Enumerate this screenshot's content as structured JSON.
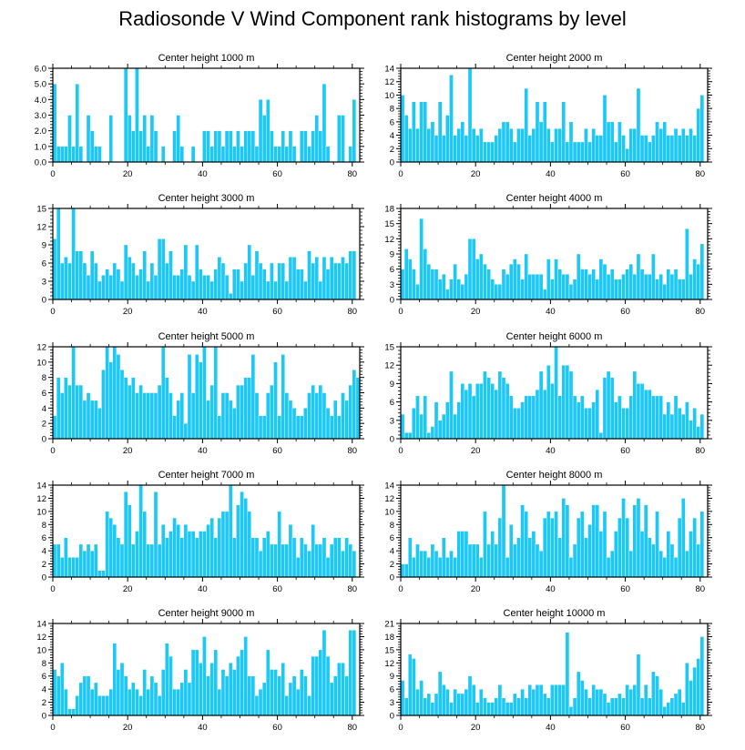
{
  "title": "Radiosonde V Wind Component rank histograms by level",
  "colors": {
    "bar": "#1ec8f5",
    "bar_edge": "#ffffff",
    "axis": "#000000"
  },
  "chart_data": [
    {
      "type": "bar",
      "title": "Center height 1000 m",
      "xlim": [
        0,
        82
      ],
      "ylim": [
        0,
        6
      ],
      "xticks": [
        0,
        20,
        40,
        60,
        80
      ],
      "yticks": [
        0,
        1,
        2,
        3,
        4,
        5,
        6
      ],
      "ytick_labels": [
        "0.0",
        "1.0",
        "2.0",
        "3.0",
        "4.0",
        "5.0",
        "6.0"
      ],
      "values": [
        5,
        1,
        1,
        1,
        3,
        1,
        5,
        1,
        0,
        3,
        2,
        1,
        1,
        0,
        0,
        3,
        0,
        0,
        0,
        6,
        3,
        2,
        6,
        2,
        3,
        1,
        3,
        2,
        0,
        1,
        0,
        0,
        2,
        3,
        1,
        0,
        0,
        1,
        0,
        0,
        2,
        2,
        1,
        2,
        2,
        1,
        2,
        2,
        1,
        2,
        1,
        2,
        2,
        2,
        1,
        4,
        3,
        4,
        2,
        1,
        1,
        2,
        1,
        2,
        1,
        0,
        2,
        2,
        1,
        2,
        3,
        2,
        5,
        1,
        0,
        0,
        3,
        3,
        0,
        1,
        4,
        0
      ]
    },
    {
      "type": "bar",
      "title": "Center height 2000 m",
      "xlim": [
        0,
        82
      ],
      "ylim": [
        0,
        14
      ],
      "xticks": [
        0,
        20,
        40,
        60,
        80
      ],
      "yticks": [
        0,
        2,
        4,
        6,
        8,
        10,
        12,
        14
      ],
      "ytick_labels": [
        "0",
        "2",
        "4",
        "6",
        "8",
        "10",
        "12",
        "14"
      ],
      "values": [
        10,
        7,
        5,
        9,
        5,
        9,
        9,
        5,
        6,
        4,
        9,
        4,
        7,
        13,
        4,
        5,
        6,
        4,
        14,
        5,
        4,
        5,
        3,
        3,
        3,
        4,
        5,
        6,
        6,
        5,
        3,
        5,
        5,
        11,
        4,
        5,
        9,
        6,
        9,
        5,
        3,
        5,
        5,
        9,
        3,
        6,
        3,
        3,
        3,
        5,
        3,
        5,
        4,
        4,
        10,
        6,
        6,
        3,
        6,
        4,
        2,
        5,
        5,
        11,
        4,
        4,
        3,
        4,
        6,
        5,
        6,
        4,
        4,
        5,
        4,
        5,
        4,
        5,
        4,
        8,
        10,
        0
      ]
    },
    {
      "type": "bar",
      "title": "Center height 3000 m",
      "xlim": [
        0,
        82
      ],
      "ylim": [
        0,
        15
      ],
      "xticks": [
        0,
        20,
        40,
        60,
        80
      ],
      "yticks": [
        0,
        3,
        6,
        9,
        12,
        15
      ],
      "ytick_labels": [
        "0",
        "3",
        "6",
        "9",
        "12",
        "15"
      ],
      "values": [
        10,
        15,
        6,
        7,
        6,
        15,
        8,
        8,
        6,
        4,
        8,
        6,
        3,
        4,
        5,
        4,
        6,
        5,
        3,
        9,
        7,
        6,
        4,
        5,
        8,
        3,
        6,
        4,
        10,
        10,
        6,
        8,
        4,
        4,
        5,
        9,
        4,
        3,
        9,
        5,
        4,
        4,
        3,
        5,
        7,
        6,
        4,
        1,
        5,
        5,
        3,
        6,
        9,
        4,
        8,
        6,
        5,
        3,
        6,
        3,
        6,
        6,
        3,
        7,
        7,
        5,
        5,
        3,
        8,
        6,
        7,
        3,
        7,
        5,
        7,
        6,
        6,
        7,
        6,
        8,
        8,
        0
      ]
    },
    {
      "type": "bar",
      "title": "Center height 4000 m",
      "xlim": [
        0,
        82
      ],
      "ylim": [
        0,
        18
      ],
      "xticks": [
        0,
        20,
        40,
        60,
        80
      ],
      "yticks": [
        0,
        3,
        6,
        9,
        12,
        15,
        18
      ],
      "ytick_labels": [
        "0",
        "3",
        "6",
        "9",
        "12",
        "15",
        "18"
      ],
      "values": [
        6,
        10,
        8,
        6,
        3,
        16,
        10,
        7,
        6,
        6,
        4,
        5,
        2,
        4,
        7,
        4,
        3,
        5,
        12,
        12,
        8,
        9,
        7,
        6,
        4,
        3,
        3,
        6,
        5,
        7,
        8,
        7,
        4,
        9,
        5,
        5,
        5,
        5,
        2,
        8,
        4,
        8,
        6,
        5,
        5,
        3,
        4,
        9,
        6,
        6,
        5,
        6,
        4,
        8,
        7,
        5,
        6,
        4,
        4,
        5,
        6,
        7,
        5,
        9,
        6,
        5,
        5,
        9,
        4,
        5,
        3,
        6,
        5,
        6,
        4,
        4,
        14,
        5,
        8,
        7,
        11,
        0
      ]
    },
    {
      "type": "bar",
      "title": "Center height 5000 m",
      "xlim": [
        0,
        82
      ],
      "ylim": [
        0,
        12
      ],
      "xticks": [
        0,
        20,
        40,
        60,
        80
      ],
      "yticks": [
        0,
        2,
        4,
        6,
        8,
        10,
        12
      ],
      "ytick_labels": [
        "0",
        "2",
        "4",
        "6",
        "8",
        "10",
        "12"
      ],
      "values": [
        3,
        8,
        6,
        8,
        7,
        12,
        7,
        7,
        5,
        6,
        5,
        5,
        4,
        9,
        12,
        10,
        12,
        11,
        9,
        8,
        7,
        8,
        6,
        7,
        6,
        6,
        6,
        6,
        7,
        12,
        8,
        6,
        3,
        5,
        6,
        2,
        11,
        6,
        11,
        10,
        12,
        5,
        7,
        12,
        3,
        6,
        6,
        5,
        4,
        7,
        7,
        8,
        8,
        11,
        6,
        3,
        3,
        6,
        7,
        10,
        3,
        11,
        6,
        5,
        4,
        3,
        3,
        4,
        6,
        7,
        6,
        7,
        6,
        4,
        3,
        5,
        3,
        6,
        5,
        7,
        9,
        8
      ]
    },
    {
      "type": "bar",
      "title": "Center height 6000 m",
      "xlim": [
        0,
        82
      ],
      "ylim": [
        0,
        15
      ],
      "xticks": [
        0,
        20,
        40,
        60,
        80
      ],
      "yticks": [
        0,
        3,
        6,
        9,
        12,
        15
      ],
      "ytick_labels": [
        "0",
        "3",
        "6",
        "9",
        "12",
        "15"
      ],
      "values": [
        4,
        1,
        1,
        5,
        7,
        4,
        7,
        1,
        2,
        6,
        3,
        4,
        6,
        11,
        4,
        6,
        9,
        8,
        9,
        7,
        9,
        9,
        11,
        10,
        9,
        8,
        11,
        10,
        9,
        7,
        5,
        5,
        6,
        7,
        7,
        7,
        8,
        11,
        8,
        12,
        9,
        15,
        7,
        12,
        12,
        11,
        7,
        6,
        7,
        5,
        5,
        6,
        8,
        1,
        10,
        11,
        10,
        6,
        7,
        5,
        5,
        7,
        11,
        9,
        9,
        8,
        8,
        7,
        7,
        7,
        4,
        6,
        4,
        7,
        5,
        4,
        6,
        3,
        5,
        2,
        4,
        0
      ]
    },
    {
      "type": "bar",
      "title": "Center height 7000 m",
      "xlim": [
        0,
        82
      ],
      "ylim": [
        0,
        14
      ],
      "xticks": [
        0,
        20,
        40,
        60,
        80
      ],
      "yticks": [
        0,
        2,
        4,
        6,
        8,
        10,
        12,
        14
      ],
      "ytick_labels": [
        "0",
        "2",
        "4",
        "6",
        "8",
        "10",
        "12",
        "14"
      ],
      "values": [
        5,
        5,
        3,
        6,
        3,
        3,
        3,
        5,
        4,
        5,
        4,
        5,
        1,
        1,
        10,
        9,
        8,
        6,
        5,
        13,
        11,
        5,
        7,
        14,
        10,
        5,
        5,
        13,
        5,
        8,
        6,
        7,
        9,
        8,
        6,
        8,
        7,
        7,
        6,
        7,
        7,
        8,
        9,
        6,
        9,
        10,
        10,
        14,
        6,
        11,
        13,
        12,
        10,
        6,
        6,
        4,
        6,
        7,
        5,
        5,
        10,
        5,
        5,
        8,
        6,
        3,
        6,
        5,
        4,
        8,
        5,
        5,
        6,
        3,
        5,
        6,
        6,
        4,
        6,
        5,
        4,
        0
      ]
    },
    {
      "type": "bar",
      "title": "Center height 8000 m",
      "xlim": [
        0,
        82
      ],
      "ylim": [
        0,
        14
      ],
      "xticks": [
        0,
        20,
        40,
        60,
        80
      ],
      "yticks": [
        0,
        2,
        4,
        6,
        8,
        10,
        12,
        14
      ],
      "ytick_labels": [
        "0",
        "2",
        "4",
        "6",
        "8",
        "10",
        "12",
        "14"
      ],
      "values": [
        2,
        2,
        6,
        3,
        5,
        4,
        4,
        3,
        5,
        4,
        3,
        6,
        3,
        4,
        3,
        7,
        7,
        7,
        5,
        5,
        5,
        3,
        10,
        5,
        7,
        5,
        9,
        14,
        3,
        8,
        5,
        6,
        11,
        10,
        6,
        7,
        5,
        4,
        9,
        10,
        9,
        10,
        6,
        12,
        11,
        3,
        5,
        9,
        10,
        6,
        8,
        11,
        11,
        7,
        10,
        3,
        4,
        7,
        9,
        12,
        9,
        4,
        11,
        12,
        7,
        11,
        6,
        5,
        10,
        4,
        3,
        7,
        5,
        3,
        9,
        12,
        4,
        7,
        9,
        5,
        10,
        0
      ]
    },
    {
      "type": "bar",
      "title": "Center height 9000 m",
      "xlim": [
        0,
        82
      ],
      "ylim": [
        0,
        14
      ],
      "xticks": [
        0,
        20,
        40,
        60,
        80
      ],
      "yticks": [
        0,
        2,
        4,
        6,
        8,
        10,
        12,
        14
      ],
      "ytick_labels": [
        "0",
        "2",
        "4",
        "6",
        "8",
        "10",
        "12",
        "14"
      ],
      "values": [
        7,
        6,
        8,
        4,
        1,
        1,
        3,
        5,
        6,
        6,
        4,
        5,
        3,
        3,
        3,
        4,
        11,
        7,
        8,
        6,
        4,
        5,
        4,
        3,
        7,
        4,
        6,
        5,
        3,
        7,
        11,
        9,
        4,
        4,
        5,
        7,
        5,
        10,
        10,
        8,
        12,
        6,
        8,
        10,
        4,
        7,
        6,
        8,
        7,
        9,
        10,
        12,
        6,
        6,
        3,
        4,
        5,
        10,
        7,
        7,
        6,
        8,
        3,
        5,
        6,
        4,
        7,
        6,
        3,
        9,
        9,
        10,
        13,
        9,
        5,
        6,
        8,
        8,
        6,
        13,
        13,
        0
      ]
    },
    {
      "type": "bar",
      "title": "Center height 10000 m",
      "xlim": [
        0,
        82
      ],
      "ylim": [
        0,
        21
      ],
      "xticks": [
        0,
        20,
        40,
        60,
        80
      ],
      "yticks": [
        0,
        3,
        6,
        9,
        12,
        15,
        18,
        21
      ],
      "ytick_labels": [
        "0",
        "3",
        "6",
        "9",
        "12",
        "15",
        "18",
        "21"
      ],
      "values": [
        8,
        4,
        14,
        13,
        6,
        8,
        4,
        5,
        3,
        5,
        10,
        7,
        6,
        3,
        6,
        5,
        5,
        6,
        9,
        7,
        3,
        6,
        4,
        3,
        3,
        4,
        7,
        4,
        3,
        3,
        5,
        4,
        6,
        4,
        7,
        6,
        7,
        7,
        5,
        4,
        7,
        7,
        7,
        7,
        19,
        2,
        4,
        10,
        8,
        6,
        4,
        7,
        6,
        6,
        5,
        3,
        4,
        4,
        5,
        4,
        7,
        6,
        7,
        14,
        4,
        7,
        4,
        10,
        9,
        6,
        2,
        3,
        4,
        5,
        6,
        3,
        12,
        8,
        11,
        13,
        18,
        0
      ]
    }
  ]
}
